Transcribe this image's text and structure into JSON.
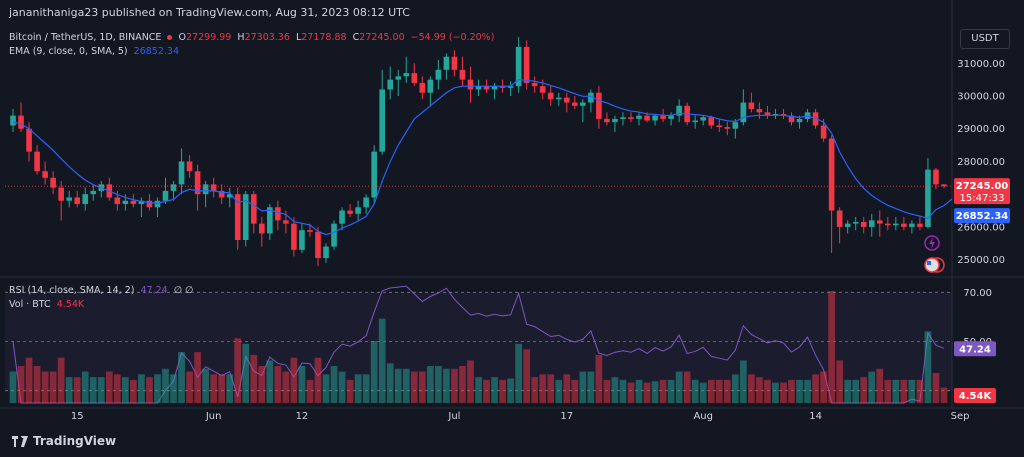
{
  "caption": "jananithaniga23 published on TradingView.com, Aug 31, 2023 08:12 UTC",
  "legend": {
    "symbol": "Bitcoin / TetherUS, 1D, BINANCE",
    "o_label": "O",
    "o": "27299.99",
    "h_label": "H",
    "h": "27303.36",
    "l_label": "L",
    "l": "27178.88",
    "c_label": "C",
    "c": "27245.00",
    "chg": "−54.99 (−0.20%)",
    "ema_label": "EMA (9, close, 0, SMA, 5)",
    "ema_value": "26852.34"
  },
  "rsi_legend": {
    "label": "RSI (14, close, SMA, 14, 2)",
    "value": "47.24",
    "extra": "∅ ∅",
    "vol_label": "Vol · BTC",
    "vol_value": "4.54K"
  },
  "currency_button": "USDT",
  "footer": {
    "brand": "TradingView"
  },
  "colors": {
    "up": "#26a69a",
    "down": "#f23645",
    "ema": "#2962ff",
    "rsi": "#7e57c2",
    "bg": "#131722"
  },
  "chart_data": {
    "type": "candlestick",
    "price_axis": {
      "ticks": [
        25000,
        26000,
        27000,
        28000,
        29000,
        30000,
        31000
      ],
      "tick_labels": [
        "25000.00",
        "26000.00",
        "27000.00",
        "28000.00",
        "29000.00",
        "30000.00",
        "31000.00"
      ],
      "range": [
        24500,
        32200
      ]
    },
    "price_badges": [
      {
        "value": 27245.0,
        "label": "27245.00",
        "sub": "15:47:33",
        "color": "#f23645"
      },
      {
        "value": 26852.34,
        "label": "26852.34",
        "color": "#2962ff"
      }
    ],
    "rsi_axis": {
      "ticks": [
        70,
        50
      ],
      "tick_labels": [
        "70.00",
        "50.00"
      ],
      "range": [
        25,
        75
      ]
    },
    "rsi_badge": {
      "value": 47.24,
      "label": "47.24"
    },
    "volume_badge": {
      "label": "4.54K"
    },
    "x_axis": {
      "labels": [
        {
          "text": "15",
          "index": 8
        },
        {
          "text": "Jun",
          "index": 25
        },
        {
          "text": "12",
          "index": 36
        },
        {
          "text": "Jul",
          "index": 55
        },
        {
          "text": "17",
          "index": 69
        },
        {
          "text": "Aug",
          "index": 86
        },
        {
          "text": "14",
          "index": 100
        },
        {
          "text": "Sep",
          "index": 118
        }
      ]
    },
    "candles": [
      [
        29100,
        29600,
        28900,
        29400
      ],
      [
        29400,
        29800,
        28900,
        29000
      ],
      [
        29000,
        29200,
        28000,
        28300
      ],
      [
        28300,
        28500,
        27600,
        27700
      ],
      [
        27700,
        28000,
        27300,
        27500
      ],
      [
        27500,
        27700,
        27000,
        27200
      ],
      [
        27200,
        27400,
        26200,
        26800
      ],
      [
        26800,
        27100,
        26600,
        26900
      ],
      [
        26900,
        27100,
        26600,
        26700
      ],
      [
        26700,
        27200,
        26500,
        27000
      ],
      [
        27000,
        27300,
        26800,
        27100
      ],
      [
        27100,
        27400,
        26900,
        27300
      ],
      [
        27300,
        27500,
        26800,
        26900
      ],
      [
        26900,
        27100,
        26500,
        26700
      ],
      [
        26700,
        27000,
        26500,
        26800
      ],
      [
        26800,
        27000,
        26600,
        26700
      ],
      [
        26700,
        26900,
        26300,
        26800
      ],
      [
        26800,
        27000,
        26500,
        26600
      ],
      [
        26600,
        26900,
        26300,
        26800
      ],
      [
        26800,
        27500,
        26700,
        27100
      ],
      [
        27100,
        27400,
        26800,
        27300
      ],
      [
        27300,
        28400,
        27000,
        28000
      ],
      [
        28000,
        28200,
        27500,
        27700
      ],
      [
        27700,
        27900,
        26500,
        27000
      ],
      [
        27000,
        27400,
        26600,
        27300
      ],
      [
        27300,
        27500,
        26900,
        27100
      ],
      [
        27100,
        27300,
        26700,
        26900
      ],
      [
        26900,
        27200,
        26600,
        27000
      ],
      [
        27000,
        27200,
        25300,
        25600
      ],
      [
        25600,
        27100,
        25400,
        27000
      ],
      [
        27000,
        27100,
        25800,
        26100
      ],
      [
        26100,
        26300,
        25400,
        25800
      ],
      [
        25800,
        26700,
        25600,
        26600
      ],
      [
        26600,
        26800,
        25900,
        26200
      ],
      [
        26200,
        26500,
        25800,
        26100
      ],
      [
        26100,
        26300,
        25100,
        25300
      ],
      [
        25300,
        26100,
        25200,
        25900
      ],
      [
        25900,
        26100,
        25700,
        25850
      ],
      [
        25850,
        26000,
        24800,
        25050
      ],
      [
        25050,
        25500,
        24900,
        25400
      ],
      [
        25400,
        26200,
        25300,
        26100
      ],
      [
        26100,
        26600,
        25900,
        26500
      ],
      [
        26500,
        26700,
        26300,
        26400
      ],
      [
        26400,
        26800,
        26200,
        26600
      ],
      [
        26600,
        27000,
        26400,
        26900
      ],
      [
        26900,
        28500,
        26700,
        28300
      ],
      [
        28300,
        30800,
        28200,
        30200
      ],
      [
        30200,
        30900,
        29900,
        30500
      ],
      [
        30500,
        30800,
        30000,
        30600
      ],
      [
        30600,
        31200,
        30400,
        30700
      ],
      [
        30700,
        31000,
        30300,
        30400
      ],
      [
        30400,
        30600,
        29900,
        30100
      ],
      [
        30100,
        30600,
        29700,
        30500
      ],
      [
        30500,
        31100,
        30200,
        30800
      ],
      [
        30800,
        31300,
        30500,
        31200
      ],
      [
        31200,
        31400,
        30600,
        30800
      ],
      [
        30800,
        31200,
        30300,
        30500
      ],
      [
        30500,
        30900,
        29800,
        30200
      ],
      [
        30200,
        30500,
        30000,
        30300
      ],
      [
        30300,
        30500,
        30100,
        30200
      ],
      [
        30200,
        30400,
        29900,
        30300
      ],
      [
        30300,
        30500,
        30100,
        30250
      ],
      [
        30250,
        30450,
        30000,
        30300
      ],
      [
        30300,
        31800,
        30100,
        31500
      ],
      [
        31500,
        31700,
        30200,
        30400
      ],
      [
        30400,
        30600,
        30100,
        30300
      ],
      [
        30300,
        30500,
        29900,
        30100
      ],
      [
        30100,
        30300,
        29700,
        29900
      ],
      [
        29900,
        30100,
        29700,
        29950
      ],
      [
        29950,
        30100,
        29500,
        29800
      ],
      [
        29800,
        30000,
        29600,
        29700
      ],
      [
        29700,
        29900,
        29200,
        29800
      ],
      [
        29800,
        30200,
        29500,
        30100
      ],
      [
        30100,
        30300,
        29000,
        29300
      ],
      [
        29300,
        29500,
        29100,
        29200
      ],
      [
        29200,
        29400,
        28900,
        29300
      ],
      [
        29300,
        29500,
        29100,
        29350
      ],
      [
        29350,
        29500,
        29200,
        29300
      ],
      [
        29300,
        29500,
        29100,
        29400
      ],
      [
        29400,
        29500,
        29200,
        29250
      ],
      [
        29250,
        29450,
        29100,
        29400
      ],
      [
        29400,
        29600,
        29200,
        29300
      ],
      [
        29300,
        29500,
        29100,
        29400
      ],
      [
        29400,
        29900,
        29200,
        29700
      ],
      [
        29700,
        29800,
        29100,
        29200
      ],
      [
        29200,
        29400,
        29000,
        29250
      ],
      [
        29250,
        29400,
        29100,
        29350
      ],
      [
        29350,
        29400,
        29000,
        29100
      ],
      [
        29100,
        29300,
        28900,
        29050
      ],
      [
        29050,
        29200,
        28800,
        29000
      ],
      [
        29000,
        29300,
        28700,
        29200
      ],
      [
        29200,
        30200,
        29100,
        29800
      ],
      [
        29800,
        30100,
        29500,
        29600
      ],
      [
        29600,
        29800,
        29300,
        29500
      ],
      [
        29500,
        29700,
        29300,
        29400
      ],
      [
        29400,
        29600,
        29300,
        29450
      ],
      [
        29450,
        29600,
        29300,
        29400
      ],
      [
        29400,
        29500,
        29100,
        29200
      ],
      [
        29200,
        29400,
        29000,
        29300
      ],
      [
        29300,
        29600,
        29200,
        29500
      ],
      [
        29500,
        29600,
        29000,
        29100
      ],
      [
        29100,
        29300,
        28600,
        28700
      ],
      [
        28700,
        28800,
        25200,
        26500
      ],
      [
        26500,
        26600,
        25500,
        26000
      ],
      [
        26000,
        26200,
        25800,
        26100
      ],
      [
        26100,
        26300,
        25900,
        26150
      ],
      [
        26150,
        26300,
        25800,
        26000
      ],
      [
        26000,
        26400,
        25700,
        26200
      ],
      [
        26200,
        26500,
        25700,
        26100
      ],
      [
        26100,
        26300,
        25900,
        26050
      ],
      [
        26050,
        26300,
        25900,
        26100
      ],
      [
        26100,
        26300,
        25900,
        26000
      ],
      [
        26000,
        26200,
        25800,
        26100
      ],
      [
        26100,
        26300,
        25900,
        26000
      ],
      [
        26000,
        28100,
        25950,
        27750
      ],
      [
        27750,
        27800,
        27150,
        27300
      ],
      [
        27299.99,
        27303.36,
        27178.88,
        27245.0
      ]
    ],
    "ema": [
      29200,
      29150,
      29000,
      28780,
      28560,
      28340,
      28080,
      27840,
      27620,
      27430,
      27290,
      27190,
      27100,
      26990,
      26900,
      26830,
      26780,
      26740,
      26720,
      26780,
      26840,
      27050,
      27150,
      27100,
      27100,
      27100,
      27060,
      27040,
      26750,
      26800,
      26660,
      26490,
      26510,
      26440,
      26380,
      26160,
      26110,
      26060,
      25860,
      25770,
      25830,
      25960,
      26060,
      26180,
      26320,
      26700,
      27400,
      28000,
      28500,
      28900,
      29300,
      29500,
      29700,
      29900,
      30100,
      30250,
      30300,
      30300,
      30300,
      30300,
      30300,
      30300,
      30300,
      30500,
      30480,
      30450,
      30400,
      30320,
      30250,
      30160,
      30070,
      29990,
      29990,
      29860,
      29790,
      29690,
      29600,
      29540,
      29510,
      29450,
      29440,
      29410,
      29410,
      29470,
      29450,
      29430,
      29410,
      29360,
      29300,
      29240,
      29220,
      29340,
      29390,
      29410,
      29410,
      29410,
      29410,
      29370,
      29350,
      29380,
      29320,
      29200,
      28860,
      28290,
      27850,
      27470,
      27180,
      26960,
      26800,
      26660,
      26560,
      26460,
      26390,
      26330,
      26260,
      26530,
      26650,
      26852
    ]
  }
}
